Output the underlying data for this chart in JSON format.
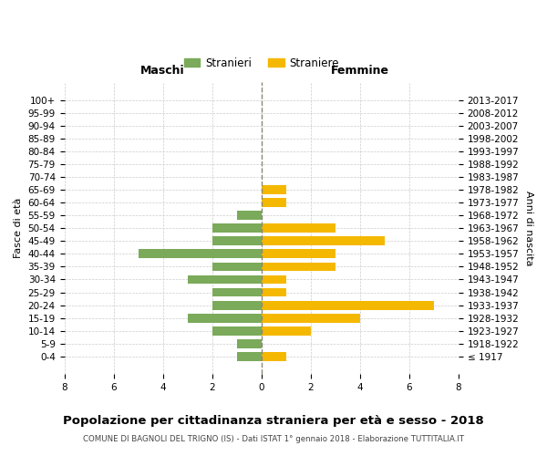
{
  "age_groups": [
    "100+",
    "95-99",
    "90-94",
    "85-89",
    "80-84",
    "75-79",
    "70-74",
    "65-69",
    "60-64",
    "55-59",
    "50-54",
    "45-49",
    "40-44",
    "35-39",
    "30-34",
    "25-29",
    "20-24",
    "15-19",
    "10-14",
    "5-9",
    "0-4"
  ],
  "birth_years": [
    "≤ 1917",
    "1918-1922",
    "1923-1927",
    "1928-1932",
    "1933-1937",
    "1938-1942",
    "1943-1947",
    "1948-1952",
    "1953-1957",
    "1958-1962",
    "1963-1967",
    "1968-1972",
    "1973-1977",
    "1978-1982",
    "1983-1987",
    "1988-1992",
    "1993-1997",
    "1998-2002",
    "2003-2007",
    "2008-2012",
    "2013-2017"
  ],
  "maschi": [
    0,
    0,
    0,
    0,
    0,
    0,
    0,
    0,
    0,
    1,
    2,
    2,
    5,
    2,
    3,
    2,
    2,
    3,
    2,
    1,
    1
  ],
  "femmine": [
    0,
    0,
    0,
    0,
    0,
    0,
    0,
    1,
    1,
    0,
    3,
    5,
    3,
    3,
    1,
    1,
    7,
    4,
    2,
    0,
    1
  ],
  "color_maschi": "#7aaa5a",
  "color_femmine": "#f5b800",
  "title": "Popolazione per cittadinanza straniera per età e sesso - 2018",
  "subtitle": "COMUNE DI BAGNOLI DEL TRIGNO (IS) - Dati ISTAT 1° gennaio 2018 - Elaborazione TUTTITALIA.IT",
  "xlabel_left": "Maschi",
  "xlabel_right": "Femmine",
  "ylabel_left": "Fasce di età",
  "ylabel_right": "Anni di nascita",
  "legend_maschi": "Stranieri",
  "legend_femmine": "Straniere",
  "xlim": 8,
  "background_color": "#ffffff",
  "grid_color": "#cccccc"
}
